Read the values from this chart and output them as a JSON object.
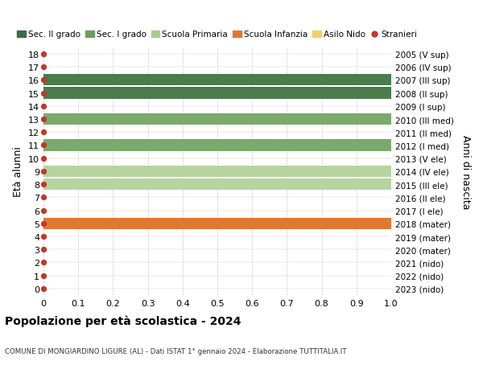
{
  "ages": [
    18,
    17,
    16,
    15,
    14,
    13,
    12,
    11,
    10,
    9,
    8,
    7,
    6,
    5,
    4,
    3,
    2,
    1,
    0
  ],
  "right_labels": [
    "2005 (V sup)",
    "2006 (IV sup)",
    "2007 (III sup)",
    "2008 (II sup)",
    "2009 (I sup)",
    "2010 (III med)",
    "2011 (II med)",
    "2012 (I med)",
    "2013 (V ele)",
    "2014 (IV ele)",
    "2015 (III ele)",
    "2016 (II ele)",
    "2017 (I ele)",
    "2018 (mater)",
    "2019 (mater)",
    "2020 (mater)",
    "2021 (nido)",
    "2022 (nido)",
    "2023 (nido)"
  ],
  "bars": [
    {
      "age": 18,
      "value": 0,
      "color": null
    },
    {
      "age": 17,
      "value": 0,
      "color": null
    },
    {
      "age": 16,
      "value": 1.0,
      "color": "#4a7c4e"
    },
    {
      "age": 15,
      "value": 1.0,
      "color": "#4a7c4e"
    },
    {
      "age": 14,
      "value": 0,
      "color": null
    },
    {
      "age": 13,
      "value": 1.0,
      "color": "#7aaa6e"
    },
    {
      "age": 12,
      "value": 0,
      "color": null
    },
    {
      "age": 11,
      "value": 1.0,
      "color": "#7aaa6e"
    },
    {
      "age": 10,
      "value": 0,
      "color": null
    },
    {
      "age": 9,
      "value": 1.0,
      "color": "#b5d4a0"
    },
    {
      "age": 8,
      "value": 1.0,
      "color": "#b5d4a0"
    },
    {
      "age": 7,
      "value": 0,
      "color": null
    },
    {
      "age": 6,
      "value": 0,
      "color": null
    },
    {
      "age": 5,
      "value": 1.0,
      "color": "#e07832"
    },
    {
      "age": 4,
      "value": 0,
      "color": null
    },
    {
      "age": 3,
      "value": 0,
      "color": null
    },
    {
      "age": 2,
      "value": 0,
      "color": null
    },
    {
      "age": 1,
      "value": 0,
      "color": null
    },
    {
      "age": 0,
      "value": 0,
      "color": null
    }
  ],
  "legend_items": [
    {
      "label": "Sec. II grado",
      "color": "#3d6b42",
      "type": "patch"
    },
    {
      "label": "Sec. I grado",
      "color": "#6a9e5e",
      "type": "patch"
    },
    {
      "label": "Scuola Primaria",
      "color": "#a8cb90",
      "type": "patch"
    },
    {
      "label": "Scuola Infanzia",
      "color": "#e07832",
      "type": "patch"
    },
    {
      "label": "Asilo Nido",
      "color": "#f0d060",
      "type": "patch"
    },
    {
      "label": "Stranieri",
      "color": "#c0392b",
      "type": "circle"
    }
  ],
  "dot_color": "#c0392b",
  "dot_size": 18,
  "ylabel": "Età alunni",
  "right_ylabel": "Anni di nascita",
  "xlim": [
    0,
    1.0
  ],
  "ylim": [
    -0.5,
    18.5
  ],
  "xticks": [
    0,
    0.1,
    0.2,
    0.3,
    0.4,
    0.5,
    0.6,
    0.7,
    0.8,
    0.9,
    1.0
  ],
  "xtick_labels": [
    "0",
    "0.1",
    "0.2",
    "0.3",
    "0.4",
    "0.5",
    "0.6",
    "0.7",
    "0.8",
    "0.9",
    "1.0"
  ],
  "title_line1": "Popolazione per età scolastica - 2024",
  "title_line2": "COMUNE DI MONGIARDINO LIGURE (AL) - Dati ISTAT 1° gennaio 2024 - Elaborazione TUTTITALIA.IT",
  "grid_color": "#cccccc",
  "background_color": "#ffffff",
  "bar_height": 0.88
}
